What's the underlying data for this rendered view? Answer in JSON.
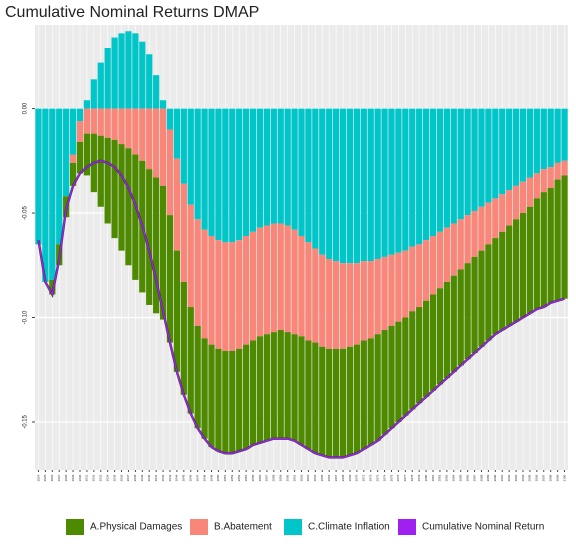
{
  "chart_data": {
    "type": "bar",
    "title": "Cumulative Nominal Returns DMAP",
    "categories": [
      2024,
      2025,
      2026,
      2027,
      2028,
      2029,
      2030,
      2031,
      2032,
      2033,
      2034,
      2035,
      2036,
      2037,
      2038,
      2039,
      2040,
      2041,
      2042,
      2043,
      2044,
      2045,
      2046,
      2047,
      2048,
      2049,
      2050,
      2051,
      2052,
      2053,
      2054,
      2055,
      2056,
      2057,
      2058,
      2059,
      2060,
      2061,
      2062,
      2063,
      2064,
      2065,
      2066,
      2067,
      2068,
      2069,
      2070,
      2071,
      2072,
      2073,
      2074,
      2075,
      2076,
      2077,
      2078,
      2079,
      2080,
      2081,
      2082,
      2083,
      2084,
      2085,
      2086,
      2087,
      2088,
      2089,
      2090,
      2091,
      2092,
      2093,
      2094,
      2095,
      2096,
      2097,
      2098,
      2099,
      2100
    ],
    "series": [
      {
        "name": "A.Physical Damages",
        "color": "#4e8a00",
        "values": [
          0,
          0,
          -0.007,
          -0.01,
          -0.01,
          -0.011,
          -0.015,
          -0.02,
          -0.028,
          -0.034,
          -0.041,
          -0.047,
          -0.051,
          -0.056,
          -0.06,
          -0.063,
          -0.065,
          -0.065,
          -0.064,
          -0.061,
          -0.058,
          -0.054,
          -0.051,
          -0.049,
          -0.048,
          -0.049,
          -0.049,
          -0.049,
          -0.049,
          -0.049,
          -0.05,
          -0.05,
          -0.051,
          -0.051,
          -0.051,
          -0.052,
          -0.051,
          -0.051,
          -0.052,
          -0.052,
          -0.053,
          -0.052,
          -0.052,
          -0.052,
          -0.052,
          -0.052,
          -0.052,
          -0.052,
          -0.051,
          -0.051,
          -0.05,
          -0.049,
          -0.048,
          -0.047,
          -0.047,
          -0.046,
          -0.046,
          -0.046,
          -0.046,
          -0.046,
          -0.046,
          -0.046,
          -0.046,
          -0.046,
          -0.046,
          -0.046,
          -0.046,
          -0.047,
          -0.048,
          -0.049,
          -0.05,
          -0.051,
          -0.053,
          -0.055,
          -0.055,
          -0.058,
          -0.059
        ]
      },
      {
        "name": "B.Abatement",
        "color": "#f8877a",
        "values": [
          0,
          0,
          0,
          0,
          0,
          -0.004,
          -0.01,
          -0.012,
          -0.012,
          -0.013,
          -0.014,
          -0.015,
          -0.017,
          -0.019,
          -0.022,
          -0.025,
          -0.029,
          -0.033,
          -0.037,
          -0.041,
          -0.044,
          -0.047,
          -0.049,
          -0.051,
          -0.052,
          -0.052,
          -0.052,
          -0.052,
          -0.052,
          -0.052,
          -0.052,
          -0.052,
          -0.052,
          -0.052,
          -0.052,
          -0.051,
          -0.051,
          -0.05,
          -0.048,
          -0.047,
          -0.045,
          -0.044,
          -0.043,
          -0.042,
          -0.041,
          -0.04,
          -0.039,
          -0.038,
          -0.037,
          -0.036,
          -0.035,
          -0.034,
          -0.033,
          -0.032,
          -0.031,
          -0.03,
          -0.029,
          -0.028,
          -0.027,
          -0.026,
          -0.025,
          -0.024,
          -0.023,
          -0.022,
          -0.021,
          -0.02,
          -0.019,
          -0.018,
          -0.017,
          -0.016,
          -0.015,
          -0.014,
          -0.012,
          -0.011,
          -0.01,
          -0.008,
          -0.007
        ]
      },
      {
        "name": "C.Climate Inflation",
        "color": "#00c6c9",
        "values": [
          -0.065,
          -0.083,
          -0.082,
          -0.065,
          -0.042,
          -0.022,
          -0.006,
          0.004,
          0.014,
          0.022,
          0.029,
          0.034,
          0.036,
          0.037,
          0.036,
          0.032,
          0.026,
          0.016,
          0.004,
          -0.01,
          -0.024,
          -0.036,
          -0.046,
          -0.053,
          -0.058,
          -0.061,
          -0.063,
          -0.064,
          -0.064,
          -0.063,
          -0.061,
          -0.059,
          -0.057,
          -0.056,
          -0.055,
          -0.055,
          -0.056,
          -0.058,
          -0.061,
          -0.064,
          -0.067,
          -0.07,
          -0.072,
          -0.073,
          -0.074,
          -0.074,
          -0.074,
          -0.073,
          -0.073,
          -0.072,
          -0.071,
          -0.07,
          -0.069,
          -0.068,
          -0.066,
          -0.065,
          -0.063,
          -0.061,
          -0.059,
          -0.057,
          -0.055,
          -0.053,
          -0.051,
          -0.049,
          -0.047,
          -0.045,
          -0.043,
          -0.041,
          -0.039,
          -0.037,
          -0.035,
          -0.033,
          -0.031,
          -0.029,
          -0.028,
          -0.026,
          -0.025
        ]
      },
      {
        "name": "Cumulative Nominal Return",
        "color": "#a020f0",
        "type": "line",
        "values": [
          -0.063,
          -0.083,
          -0.089,
          -0.072,
          -0.048,
          -0.037,
          -0.031,
          -0.028,
          -0.026,
          -0.025,
          -0.026,
          -0.028,
          -0.032,
          -0.038,
          -0.046,
          -0.056,
          -0.068,
          -0.082,
          -0.097,
          -0.112,
          -0.126,
          -0.137,
          -0.146,
          -0.153,
          -0.158,
          -0.162,
          -0.164,
          -0.165,
          -0.165,
          -0.164,
          -0.163,
          -0.161,
          -0.16,
          -0.159,
          -0.158,
          -0.158,
          -0.158,
          -0.159,
          -0.161,
          -0.163,
          -0.165,
          -0.166,
          -0.167,
          -0.167,
          -0.167,
          -0.166,
          -0.165,
          -0.163,
          -0.161,
          -0.159,
          -0.156,
          -0.153,
          -0.15,
          -0.147,
          -0.144,
          -0.141,
          -0.138,
          -0.135,
          -0.132,
          -0.129,
          -0.126,
          -0.123,
          -0.12,
          -0.117,
          -0.114,
          -0.111,
          -0.108,
          -0.106,
          -0.104,
          -0.102,
          -0.1,
          -0.098,
          -0.096,
          -0.095,
          -0.093,
          -0.092,
          -0.091
        ]
      }
    ],
    "ylim": [
      -0.173,
      0.04
    ],
    "yticks": [
      {
        "value": 0,
        "label": "0.00"
      },
      {
        "value": -0.05,
        "label": "-0.05"
      },
      {
        "value": -0.1,
        "label": "-0.10"
      },
      {
        "value": -0.15,
        "label": "-0.15"
      }
    ],
    "grid": true,
    "legend": "bottom"
  }
}
